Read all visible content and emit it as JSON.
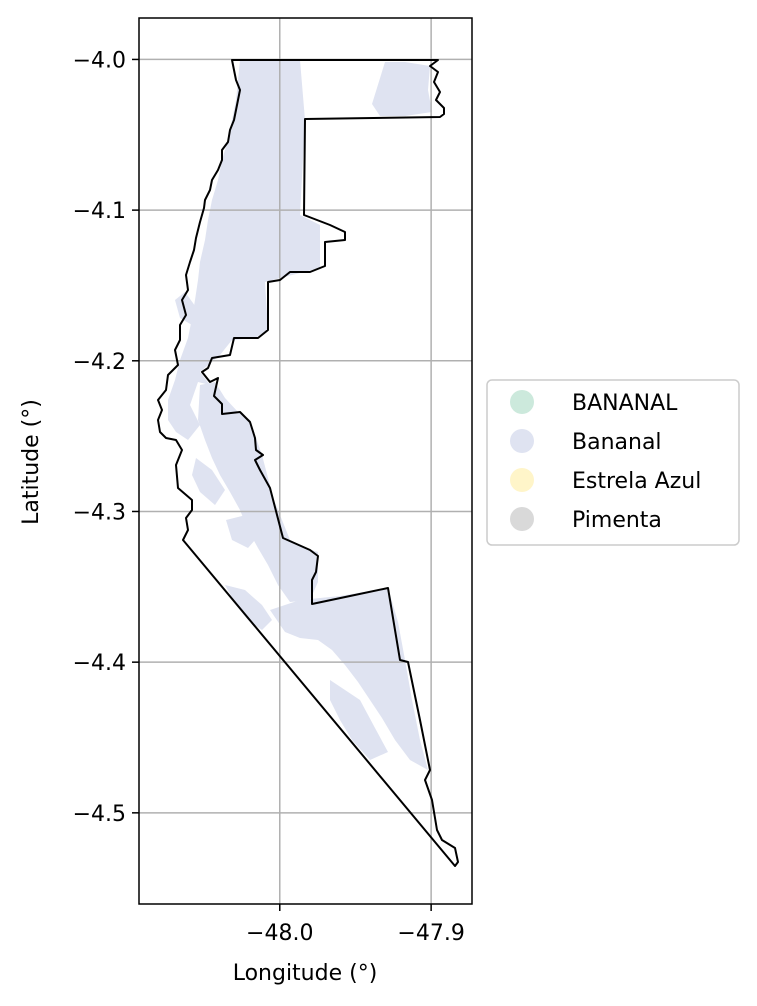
{
  "chart_data": {
    "type": "map",
    "xlabel": "Longitude (°)",
    "ylabel": "Latitude (°)",
    "xlim": [
      -48.093,
      -47.873
    ],
    "ylim": [
      -4.5605,
      -3.9725
    ],
    "x_ticks": [
      {
        "value": -48.0,
        "label": "−48.0"
      },
      {
        "value": -47.9,
        "label": "−47.9"
      }
    ],
    "y_ticks": [
      {
        "value": -4.0,
        "label": "−4.0"
      },
      {
        "value": -4.1,
        "label": "−4.1"
      },
      {
        "value": -4.2,
        "label": "−4.2"
      },
      {
        "value": -4.3,
        "label": "−4.3"
      },
      {
        "value": -4.4,
        "label": "−4.4"
      },
      {
        "value": -4.5,
        "label": "−4.5"
      }
    ],
    "grid": true,
    "legend_placement": "outside right, center",
    "legend": [
      {
        "label": "BANANAL",
        "color": "#cce9dc"
      },
      {
        "label": "Bananal",
        "color": "#dfe3f1"
      },
      {
        "label": "Estrela Azul",
        "color": "#fff5c9"
      },
      {
        "label": "Pimenta",
        "color": "#d9d9d9"
      }
    ],
    "boundary_color": "#000000",
    "fill_color": "#dfe3f1"
  }
}
